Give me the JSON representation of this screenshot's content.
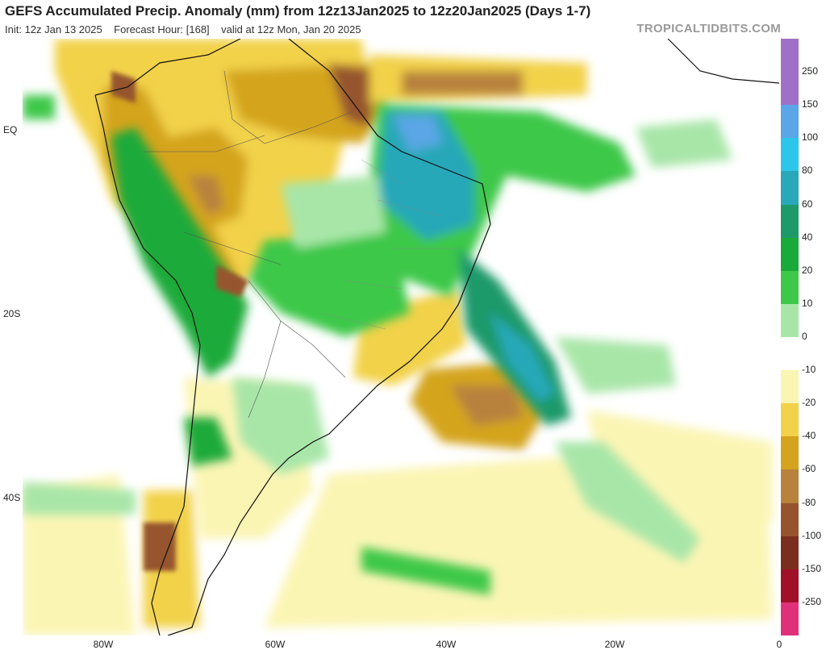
{
  "header": {
    "title": "GEFS Accumulated Precip. Anomaly (mm) from 12z13Jan2025 to 12z20Jan2025 (Days 1-7)",
    "init": "Init: 12z Jan 13 2025",
    "forecast_hour": "Forecast Hour: [168]",
    "valid": "valid at 12z Mon, Jan 20 2025",
    "brand": "TROPICALTIDBITS.COM"
  },
  "map": {
    "lat_labels": [
      {
        "text": "EQ",
        "lat": 0
      },
      {
        "text": "20S",
        "lat": -20
      },
      {
        "text": "40S",
        "lat": -40
      }
    ],
    "lon_labels": [
      {
        "text": "80W",
        "lon": -80
      },
      {
        "text": "60W",
        "lon": -60
      },
      {
        "text": "40W",
        "lon": -40
      },
      {
        "text": "20W",
        "lon": -20
      },
      {
        "text": "0",
        "lon": 0
      }
    ]
  },
  "colorbar": {
    "labels": [
      "250",
      "150",
      "100",
      "80",
      "60",
      "40",
      "20",
      "10",
      "0",
      "-10",
      "-20",
      "-40",
      "-60",
      "-80",
      "-100",
      "-150",
      "-250"
    ],
    "colors": {
      "250": "#a070c8",
      "150": "#5aa6e6",
      "100": "#2cc6ea",
      "80": "#28a8b8",
      "60": "#1e9a6a",
      "40": "#1aaa3a",
      "20": "#3ec84a",
      "10": "#a8e6a8",
      "0": "#ffffff",
      "-10": "#fbf5b4",
      "-20": "#f2d24a",
      "-40": "#d4a41e",
      "-60": "#b8823c",
      "-80": "#96542e",
      "-100": "#7a2e1e",
      "-150": "#a01028",
      "-250": "#e0307a"
    }
  }
}
